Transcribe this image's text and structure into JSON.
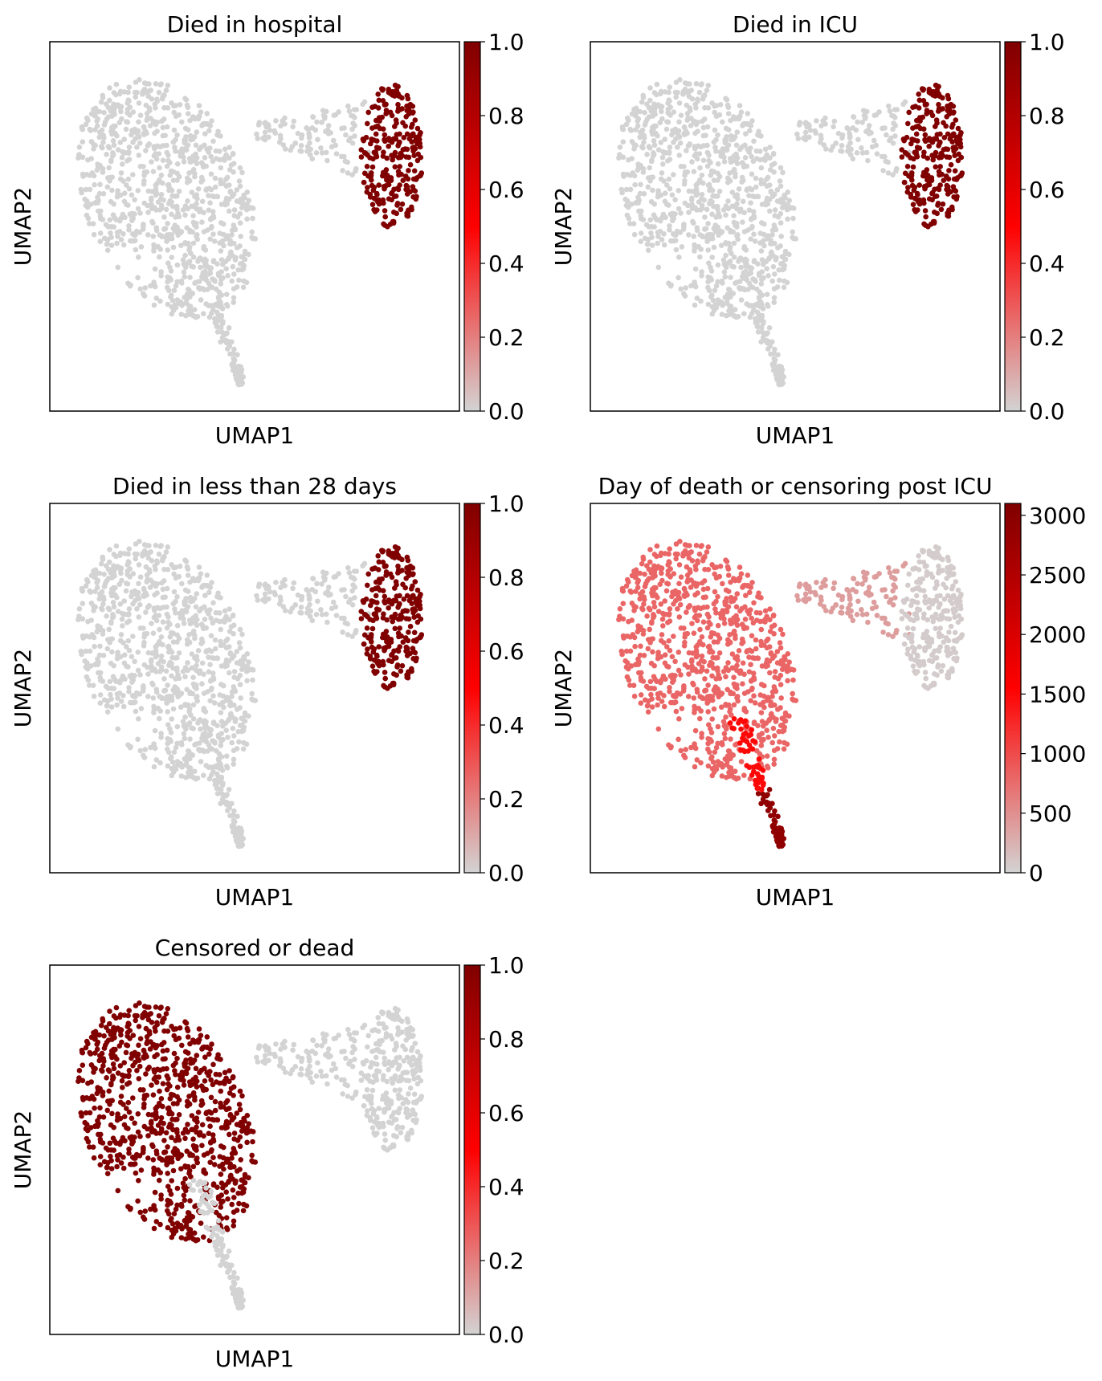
{
  "chart_data": [
    {
      "type": "scatter",
      "title": "Died in hospital",
      "xlabel": "UMAP1",
      "ylabel": "UMAP2",
      "color_feature": "binary",
      "colorbar": {
        "range": [
          0,
          1
        ],
        "ticks": [
          "0.0",
          "0.2",
          "0.4",
          "0.6",
          "0.8",
          "1.0"
        ]
      },
      "highlighted_cluster": "right",
      "highlight_value": 1.0,
      "other_value": 0.0
    },
    {
      "type": "scatter",
      "title": "Died in ICU",
      "xlabel": "UMAP1",
      "ylabel": "UMAP2",
      "color_feature": "binary",
      "colorbar": {
        "range": [
          0,
          1
        ],
        "ticks": [
          "0.0",
          "0.2",
          "0.4",
          "0.6",
          "0.8",
          "1.0"
        ]
      },
      "highlighted_cluster": "right",
      "highlight_value": 1.0,
      "other_value": 0.0
    },
    {
      "type": "scatter",
      "title": "Died in less than 28 days",
      "xlabel": "UMAP1",
      "ylabel": "UMAP2",
      "color_feature": "binary",
      "colorbar": {
        "range": [
          0,
          1
        ],
        "ticks": [
          "0.0",
          "0.2",
          "0.4",
          "0.6",
          "0.8",
          "1.0"
        ]
      },
      "highlighted_cluster": "right",
      "highlight_value": 1.0,
      "other_value": 0.0
    },
    {
      "type": "scatter",
      "title": "Day of death or censoring post ICU",
      "xlabel": "UMAP1",
      "ylabel": "UMAP2",
      "color_feature": "continuous",
      "colorbar": {
        "range": [
          0,
          3100
        ],
        "ticks": [
          "0",
          "500",
          "1000",
          "1500",
          "2000",
          "2500",
          "3000"
        ]
      },
      "cluster_values": {
        "blob": 800,
        "bridge": 400,
        "right": 50,
        "tail_top": 1500,
        "tail_bottom": 2900
      }
    },
    {
      "type": "scatter",
      "title": "Censored or dead",
      "xlabel": "UMAP1",
      "ylabel": "UMAP2",
      "color_feature": "binary",
      "colorbar": {
        "range": [
          0,
          1
        ],
        "ticks": [
          "0.0",
          "0.2",
          "0.4",
          "0.6",
          "0.8",
          "1.0"
        ]
      },
      "highlighted_cluster": "blob",
      "highlight_value": 1.0,
      "other_value": 0.0
    }
  ],
  "colormap": {
    "low": "#d3d3d3",
    "mid": "#ff0000",
    "high": "#800000"
  }
}
